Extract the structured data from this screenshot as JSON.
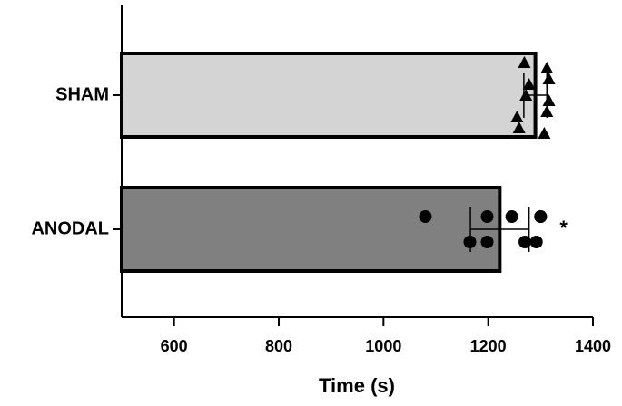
{
  "chart_data": {
    "type": "bar",
    "orientation": "horizontal",
    "categories": [
      "SHAM",
      "ANODAL"
    ],
    "values": [
      1290,
      1222
    ],
    "errors": [
      22,
      56
    ],
    "colors": [
      "#d4d4d4",
      "#808080"
    ],
    "markers": [
      "triangle",
      "circle"
    ],
    "points": [
      [
        1269,
        1316,
        1272,
        1312,
        1259,
        1312,
        1278,
        1316,
        1255,
        1307
      ],
      [
        1080,
        1165,
        1198,
        1198,
        1245,
        1270,
        1300,
        1292,
        1300
      ]
    ],
    "annotations": [
      "",
      "*"
    ],
    "xlabel": "Time (s)",
    "xlim": [
      500,
      1400
    ],
    "xticks": [
      600,
      800,
      1000,
      1200,
      1400
    ]
  }
}
